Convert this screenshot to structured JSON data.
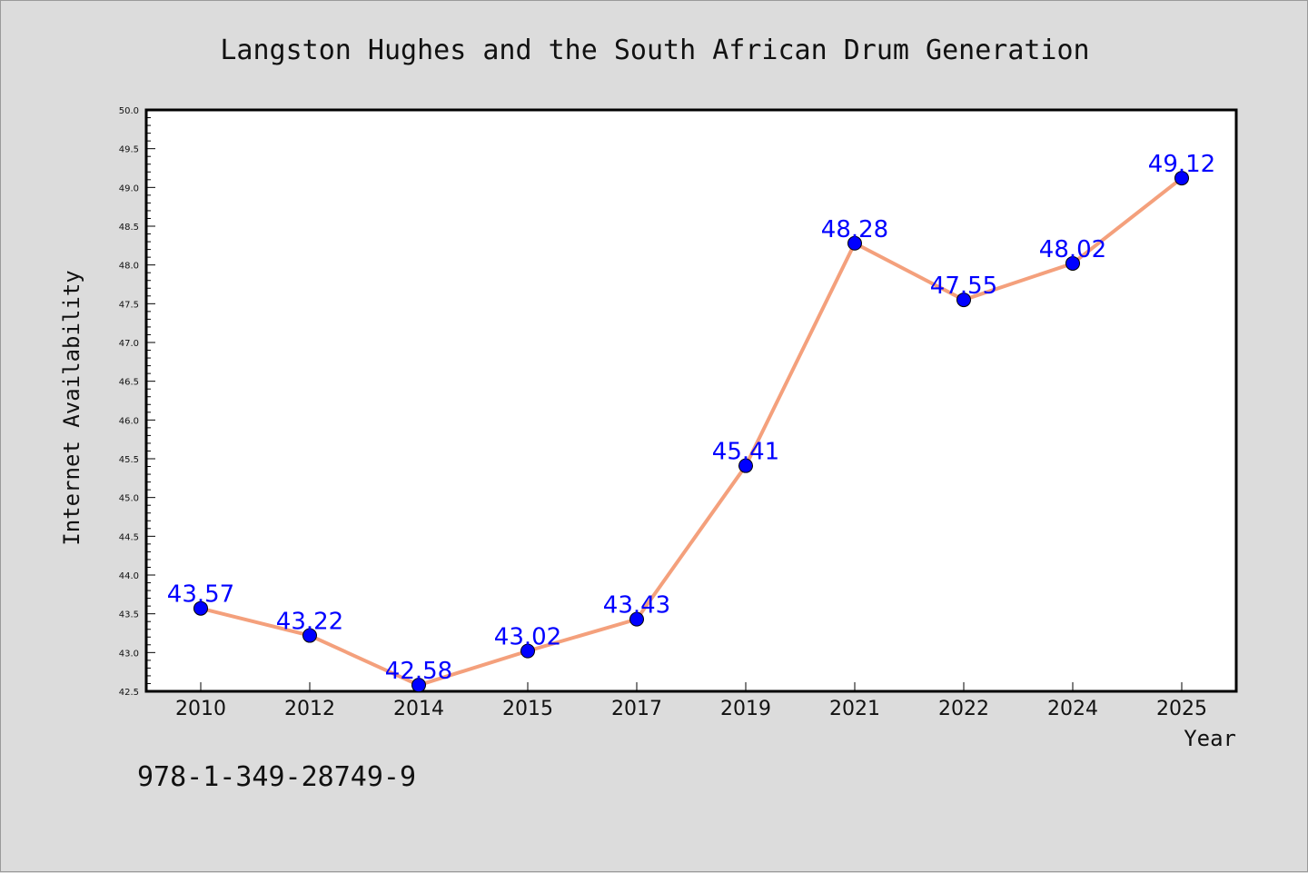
{
  "chart_data": {
    "type": "line",
    "title": "Langston Hughes and the South African Drum Generation",
    "xlabel": "Year",
    "ylabel": "Internet Availability",
    "categories": [
      "2010",
      "2012",
      "2014",
      "2015",
      "2017",
      "2019",
      "2021",
      "2022",
      "2024",
      "2025"
    ],
    "values": [
      43.57,
      43.22,
      42.58,
      43.02,
      43.43,
      45.41,
      48.28,
      47.55,
      48.02,
      49.12
    ],
    "data_labels": [
      "43.57",
      "43.22",
      "42.58",
      "43.02",
      "43.43",
      "45.41",
      "48.28",
      "47.55",
      "48.02",
      "49.12"
    ],
    "ylim": [
      42.5,
      50.0
    ],
    "y_ticks": [
      "42.5",
      "43.0",
      "43.5",
      "44.0",
      "44.5",
      "45.0",
      "45.5",
      "46.0",
      "46.5",
      "47.0",
      "47.5",
      "48.0",
      "48.5",
      "49.0",
      "49.5",
      "50.0"
    ],
    "grid": false,
    "legend": "none",
    "line_color": "#f4a07c",
    "marker_color": "#0000ff",
    "label_color": "#0000ff",
    "plot_background": "#ffffff",
    "page_background": "#dcdcdc"
  },
  "footer": {
    "isbn": "978-1-349-28749-9"
  }
}
